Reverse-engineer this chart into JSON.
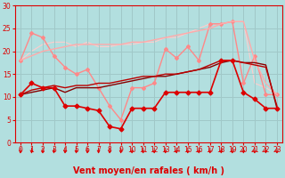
{
  "xlabel": "Vent moyen/en rafales ( km/h )",
  "background_color": "#b2dfdf",
  "grid_color": "#a0c8c8",
  "xlim": [
    -0.5,
    23.5
  ],
  "ylim": [
    0,
    30
  ],
  "yticks": [
    0,
    5,
    10,
    15,
    20,
    25,
    30
  ],
  "xticks": [
    0,
    1,
    2,
    3,
    4,
    5,
    6,
    7,
    8,
    9,
    10,
    11,
    12,
    13,
    14,
    15,
    16,
    17,
    18,
    19,
    20,
    21,
    22,
    23
  ],
  "lines": [
    {
      "x": [
        0,
        1,
        2,
        3,
        4,
        5,
        6,
        7,
        8,
        9,
        10,
        11,
        12,
        13,
        14,
        15,
        16,
        17,
        18,
        19,
        20,
        21,
        22,
        23
      ],
      "y": [
        10.5,
        13,
        12,
        12,
        8,
        8,
        7.5,
        7,
        3.5,
        3,
        7.5,
        7.5,
        7.5,
        11,
        11,
        11,
        11,
        11,
        18,
        18,
        11,
        9.5,
        7.5,
        7.5
      ],
      "color": "#dd0000",
      "lw": 1.2,
      "marker": "D",
      "ms": 2.5,
      "zorder": 4
    },
    {
      "x": [
        0,
        1,
        2,
        3,
        4,
        5,
        6,
        7,
        8,
        9,
        10,
        11,
        12,
        13,
        14,
        15,
        16,
        17,
        18,
        19,
        20,
        21,
        22,
        23
      ],
      "y": [
        10.5,
        11,
        11.5,
        12,
        11,
        12,
        12,
        12,
        12.5,
        13,
        13.5,
        14,
        14.5,
        14.5,
        15,
        15.5,
        16,
        16.5,
        17.5,
        18,
        17.5,
        17.5,
        17,
        7.5
      ],
      "color": "#880000",
      "lw": 1.0,
      "marker": null,
      "ms": 0,
      "zorder": 3
    },
    {
      "x": [
        0,
        1,
        2,
        3,
        4,
        5,
        6,
        7,
        8,
        9,
        10,
        11,
        12,
        13,
        14,
        15,
        16,
        17,
        18,
        19,
        20,
        21,
        22,
        23
      ],
      "y": [
        10.5,
        11.5,
        12,
        12.5,
        12,
        12.5,
        12.5,
        13,
        13,
        13.5,
        14,
        14.5,
        14.5,
        15,
        15,
        15.5,
        16,
        17,
        18,
        18,
        17.5,
        17,
        16.5,
        8
      ],
      "color": "#bb0000",
      "lw": 1.0,
      "marker": null,
      "ms": 0,
      "zorder": 3
    },
    {
      "x": [
        0,
        1,
        2,
        3,
        4,
        5,
        6,
        7,
        8,
        9,
        10,
        11,
        12,
        13,
        14,
        15,
        16,
        17,
        18,
        19,
        20,
        21,
        22,
        23
      ],
      "y": [
        18,
        24,
        23,
        19,
        16.5,
        15,
        16,
        12,
        8,
        5,
        12,
        12,
        13,
        20.5,
        18.5,
        21,
        18,
        26,
        26,
        26.5,
        13,
        19,
        10.5,
        10.5
      ],
      "color": "#ff8888",
      "lw": 1.0,
      "marker": "D",
      "ms": 2.0,
      "zorder": 2
    },
    {
      "x": [
        0,
        1,
        2,
        3,
        4,
        5,
        6,
        7,
        8,
        9,
        10,
        11,
        12,
        13,
        14,
        15,
        16,
        17,
        18,
        19,
        20,
        21,
        22,
        23
      ],
      "y": [
        18,
        19,
        20,
        20.5,
        21,
        21.5,
        21.5,
        21.5,
        21.5,
        21.5,
        22,
        22,
        22.5,
        23,
        23.5,
        24,
        24.5,
        25,
        26,
        26.5,
        26.5,
        18,
        13,
        10.5
      ],
      "color": "#ffaaaa",
      "lw": 1.0,
      "marker": null,
      "ms": 0,
      "zorder": 2
    },
    {
      "x": [
        0,
        1,
        2,
        3,
        4,
        5,
        6,
        7,
        8,
        9,
        10,
        11,
        12,
        13,
        14,
        15,
        16,
        17,
        18,
        19,
        20,
        21,
        22,
        23
      ],
      "y": [
        18,
        20,
        21.5,
        22,
        22,
        21,
        22,
        21,
        21,
        21.5,
        21.5,
        22,
        22,
        23,
        23,
        24,
        25,
        26,
        26,
        26.5,
        26.5,
        13,
        12,
        10.5
      ],
      "color": "#ffcccc",
      "lw": 0.8,
      "marker": null,
      "ms": 0,
      "zorder": 1
    }
  ],
  "arrow_color": "#dd0000",
  "axis_label_fontsize": 7,
  "tick_fontsize": 5.5,
  "tick_color": "#dd0000",
  "spine_color": "#dd0000"
}
